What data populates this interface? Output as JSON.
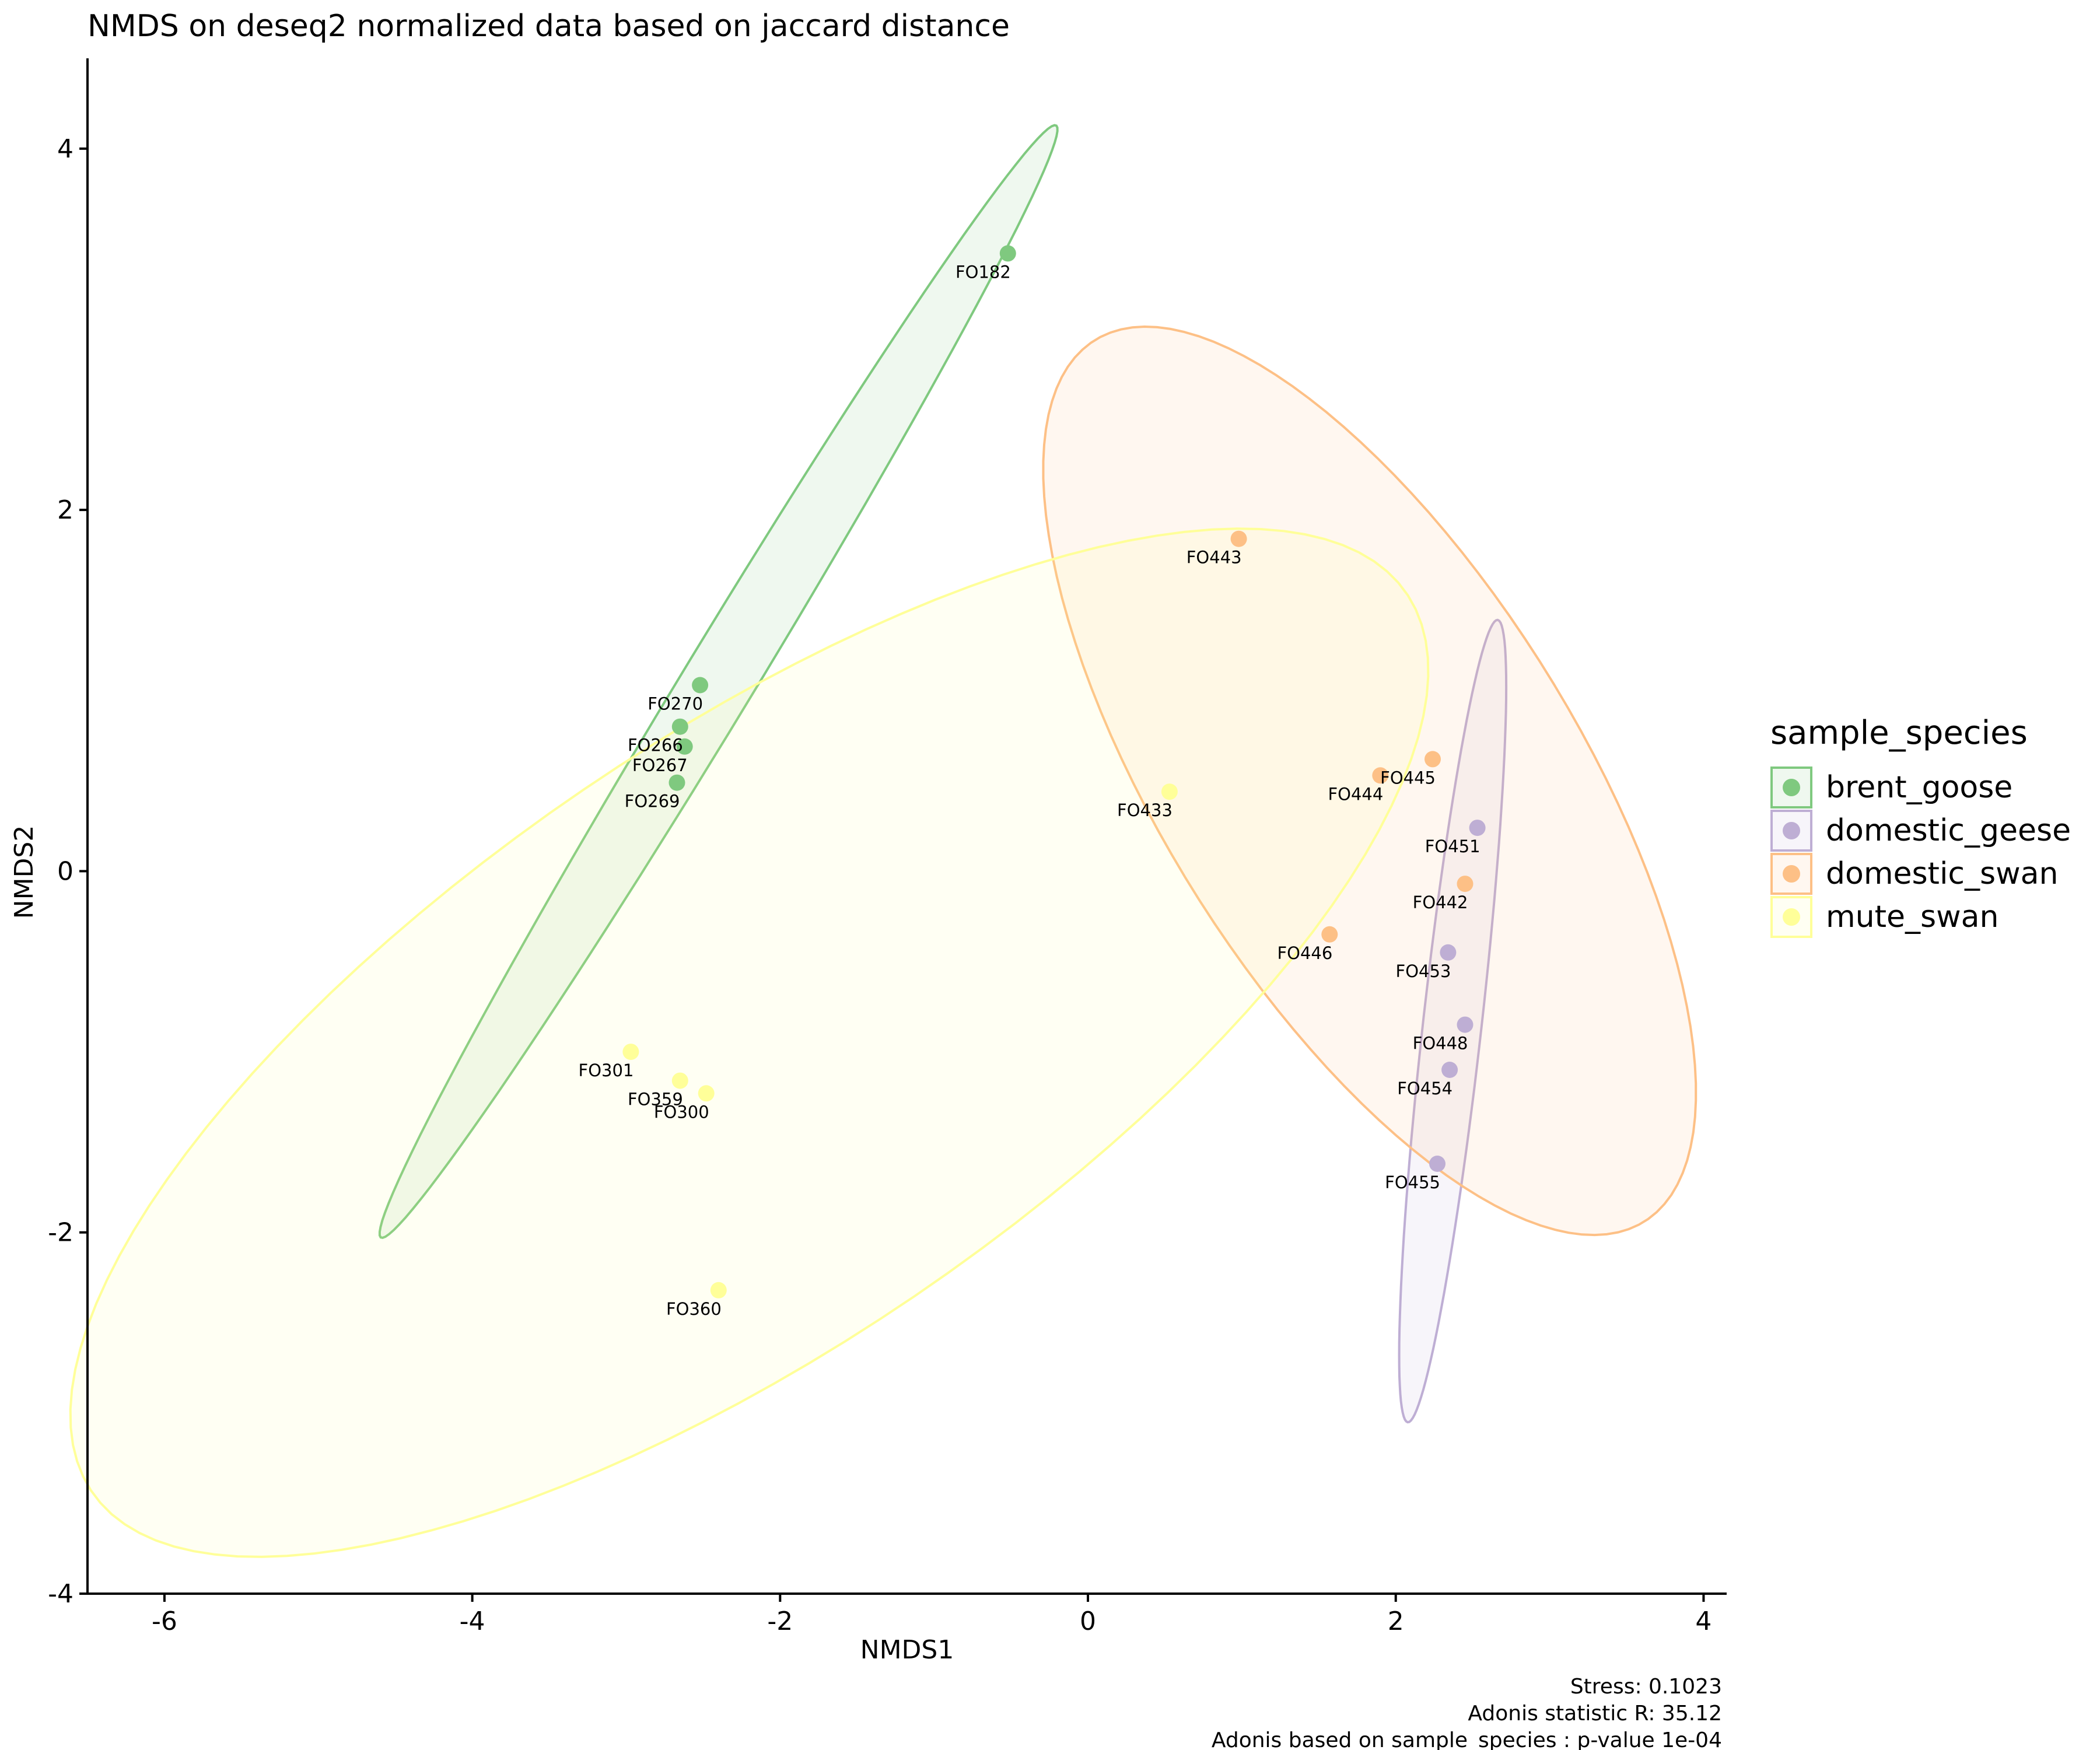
{
  "chart_data": {
    "type": "scatter",
    "title": "NMDS on deseq2 normalized data based on jaccard distance",
    "xlabel": "NMDS1",
    "ylabel": "NMDS2",
    "xlim": [
      -6.5,
      4.15
    ],
    "ylim": [
      -4.0,
      4.5
    ],
    "x_ticks": [
      -6,
      -4,
      -2,
      0,
      2,
      4
    ],
    "y_ticks": [
      -4,
      -2,
      0,
      2,
      4
    ],
    "x_tick_labels": [
      "-6",
      "-4",
      "-2",
      "0",
      "2",
      "4"
    ],
    "y_tick_labels": [
      "-4",
      "-2",
      "0",
      "2",
      "4"
    ],
    "grid": false,
    "legend": {
      "title": "sample_species",
      "placement": "right"
    },
    "series": [
      {
        "name": "brent_goose",
        "color": "#7fc97f",
        "points": [
          {
            "label": "FO182",
            "x": -0.52,
            "y": 3.42
          },
          {
            "label": "FO270",
            "x": -2.52,
            "y": 1.03
          },
          {
            "label": "FO266",
            "x": -2.65,
            "y": 0.8
          },
          {
            "label": "FO267",
            "x": -2.62,
            "y": 0.69
          },
          {
            "label": "FO269",
            "x": -2.67,
            "y": 0.49
          }
        ],
        "ellipse": {
          "cx": -2.4,
          "cy": 1.05,
          "rx": 3.78,
          "ry": 0.22,
          "angle_deg": 54.5
        }
      },
      {
        "name": "domestic_geese",
        "color": "#beaed4",
        "points": [
          {
            "label": "FO451",
            "x": 2.53,
            "y": 0.24
          },
          {
            "label": "FO453",
            "x": 2.34,
            "y": -0.45
          },
          {
            "label": "FO448",
            "x": 2.45,
            "y": -0.85
          },
          {
            "label": "FO454",
            "x": 2.35,
            "y": -1.1
          },
          {
            "label": "FO455",
            "x": 2.27,
            "y": -1.62
          }
        ],
        "ellipse": {
          "cx": 2.37,
          "cy": -0.83,
          "rx": 2.24,
          "ry": 0.19,
          "angle_deg": 82.5
        }
      },
      {
        "name": "domestic_swan",
        "color": "#fdc086",
        "points": [
          {
            "label": "FO443",
            "x": 0.98,
            "y": 1.84
          },
          {
            "label": "FO445",
            "x": 2.24,
            "y": 0.62
          },
          {
            "label": "FO444",
            "x": 1.9,
            "y": 0.53
          },
          {
            "label": "FO442",
            "x": 2.45,
            "y": -0.07
          },
          {
            "label": "FO446",
            "x": 1.57,
            "y": -0.35
          }
        ],
        "ellipse": {
          "cx": 1.83,
          "cy": 0.5,
          "rx": 3.03,
          "ry": 1.28,
          "angle_deg": -52
        }
      },
      {
        "name": "mute_swan",
        "color": "#ffff99",
        "points": [
          {
            "label": "FO433",
            "x": 0.53,
            "y": 0.44
          },
          {
            "label": "FO301",
            "x": -2.97,
            "y": -1.0
          },
          {
            "label": "FO359",
            "x": -2.65,
            "y": -1.16
          },
          {
            "label": "FO300",
            "x": -2.48,
            "y": -1.23
          },
          {
            "label": "FO360",
            "x": -2.4,
            "y": -2.32
          }
        ],
        "ellipse": {
          "cx": -2.2,
          "cy": -0.95,
          "rx": 4.95,
          "ry": 1.75,
          "angle_deg": 29
        }
      }
    ],
    "annotations": [
      "Stress: 0.1023",
      "Adonis statistic R: 35.12",
      "Adonis based on  sample_species : p-value 1e-04"
    ]
  }
}
